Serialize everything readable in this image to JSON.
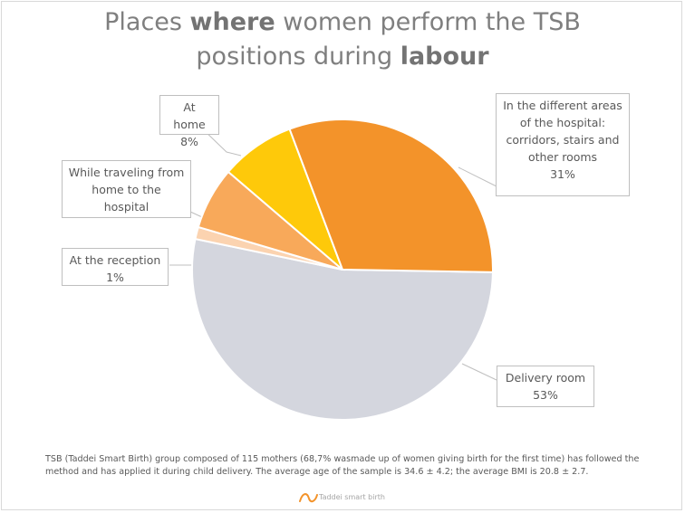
{
  "title": {
    "parts": [
      {
        "text": "Places ",
        "bold": false
      },
      {
        "text": "where",
        "bold": true
      },
      {
        "text": " women perform the TSB",
        "bold": false
      },
      {
        "br": true
      },
      {
        "text": "positions during ",
        "bold": false
      },
      {
        "text": "labour",
        "bold": true
      }
    ]
  },
  "chart_data": {
    "type": "pie",
    "slices": [
      {
        "label": "Delivery room",
        "value": 53,
        "display": "53%",
        "color": "#d4d6de"
      },
      {
        "label": "At the reception",
        "value": 1.3,
        "display": "1%",
        "color": "#fbd3b0"
      },
      {
        "label": "While traveling from home to the hospital",
        "value": 6.7,
        "display": "",
        "color": "#f8a95a"
      },
      {
        "label": "At home",
        "value": 8,
        "display": "8%",
        "color": "#fec90a"
      },
      {
        "label": "In the different areas of the hospital: corridors, stairs and other rooms",
        "value": 31,
        "display": "31%",
        "color": "#f3932a"
      }
    ]
  },
  "labels": {
    "delivery": {
      "lines": [
        "Delivery room"
      ],
      "pct": "53%"
    },
    "reception": {
      "lines": [
        "At the reception"
      ],
      "pct": "1%"
    },
    "traveling": {
      "lines": [
        "While traveling from",
        "home to the",
        "hospital"
      ]
    },
    "home": {
      "lines": [
        "At home"
      ],
      "pct": "8%"
    },
    "hospital": {
      "lines": [
        "In the different areas",
        "of the hospital:",
        "corridors, stairs and",
        "other rooms"
      ],
      "pct": "31%"
    }
  },
  "footnote": "TSB (Taddei Smart Birth) group composed of 115 mothers (68,7% wasmade up of women giving birth for the first time) has followed the method and has applied it during child delivery. The average age of the sample is 34.6 ± 4.2; the average BMI is 20.8 ± 2.7.",
  "logo_text": "Taddei smart birth",
  "accent_color": "#f3932a"
}
